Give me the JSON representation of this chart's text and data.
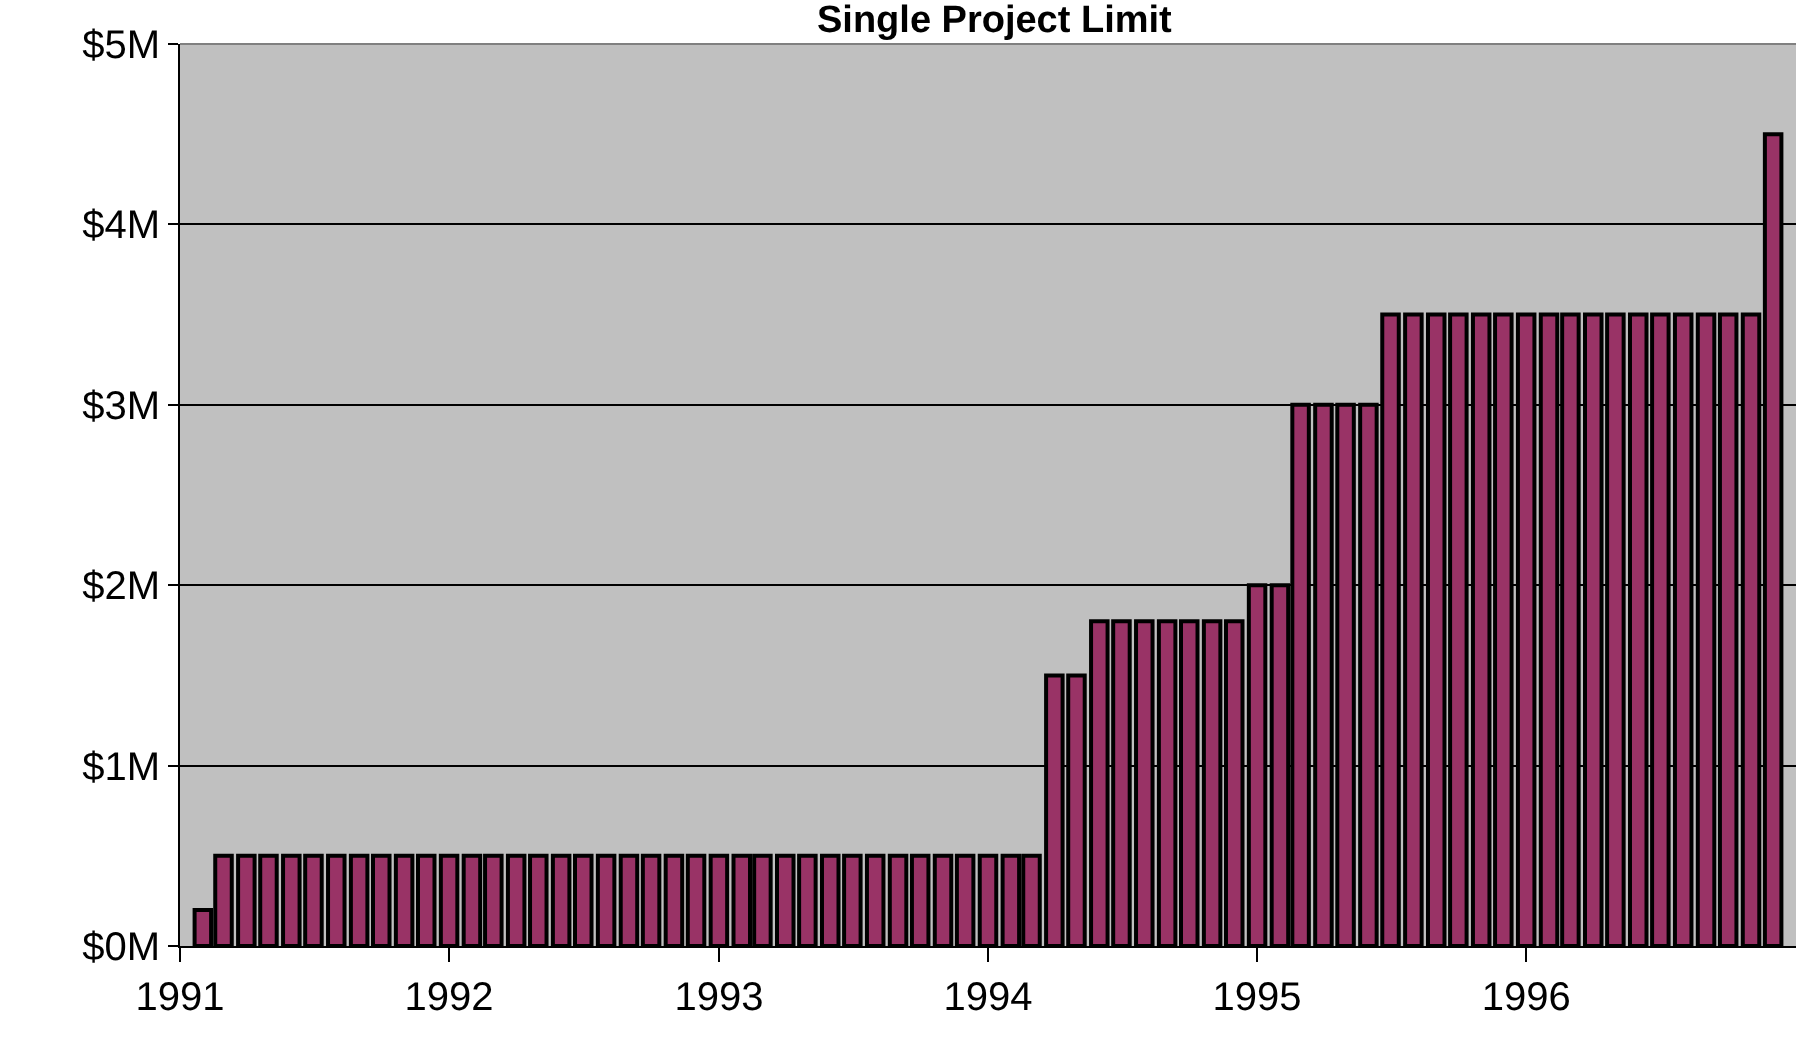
{
  "chart_data": {
    "type": "bar",
    "title": "Single Project Limit",
    "x": [
      "1991-02",
      "1991-03",
      "1991-04",
      "1991-05",
      "1991-06",
      "1991-07",
      "1991-08",
      "1991-09",
      "1991-10",
      "1991-11",
      "1991-12",
      "1992-01",
      "1992-02",
      "1992-03",
      "1992-04",
      "1992-05",
      "1992-06",
      "1992-07",
      "1992-08",
      "1992-09",
      "1992-10",
      "1992-11",
      "1992-12",
      "1993-01",
      "1993-02",
      "1993-03",
      "1993-04",
      "1993-05",
      "1993-06",
      "1993-07",
      "1993-08",
      "1993-09",
      "1993-10",
      "1993-11",
      "1993-12",
      "1994-01",
      "1994-02",
      "1994-03",
      "1994-04",
      "1994-05",
      "1994-06",
      "1994-07",
      "1994-08",
      "1994-09",
      "1994-10",
      "1994-11",
      "1994-12",
      "1995-01",
      "1995-02",
      "1995-03",
      "1995-04",
      "1995-05",
      "1995-06",
      "1995-07",
      "1995-08",
      "1995-09",
      "1995-10",
      "1995-11",
      "1995-12",
      "1996-01",
      "1996-02",
      "1996-03",
      "1996-04",
      "1996-05",
      "1996-06",
      "1996-07",
      "1996-08",
      "1996-09",
      "1996-10",
      "1996-11",
      "1996-12"
    ],
    "values": [
      0.2,
      0.5,
      0.5,
      0.5,
      0.5,
      0.5,
      0.5,
      0.5,
      0.5,
      0.5,
      0.5,
      0.5,
      0.5,
      0.5,
      0.5,
      0.5,
      0.5,
      0.5,
      0.5,
      0.5,
      0.5,
      0.5,
      0.5,
      0.5,
      0.5,
      0.5,
      0.5,
      0.5,
      0.5,
      0.5,
      0.5,
      0.5,
      0.5,
      0.5,
      0.5,
      0.5,
      0.5,
      0.5,
      1.5,
      1.5,
      1.8,
      1.8,
      1.8,
      1.8,
      1.8,
      1.8,
      1.8,
      2.0,
      2.0,
      3.0,
      3.0,
      3.0,
      3.0,
      3.5,
      3.5,
      3.5,
      3.5,
      3.5,
      3.5,
      3.5,
      3.5,
      3.5,
      3.5,
      3.5,
      3.5,
      3.5,
      3.5,
      3.5,
      3.5,
      3.5,
      4.5
    ],
    "color": "#993366",
    "xlim": [
      "1991-01",
      "1997-01"
    ],
    "xticks": [
      {
        "value": "1991",
        "label": "1991"
      },
      {
        "value": "1992",
        "label": "1992"
      },
      {
        "value": "1993",
        "label": "1993"
      },
      {
        "value": "1994",
        "label": "1994"
      },
      {
        "value": "1995",
        "label": "1995"
      },
      {
        "value": "1996",
        "label": "1996"
      }
    ],
    "ylim": [
      0,
      5
    ],
    "yticks": [
      {
        "value": 0,
        "label": "$0M"
      },
      {
        "value": 1,
        "label": "$1M"
      },
      {
        "value": 2,
        "label": "$2M"
      },
      {
        "value": 3,
        "label": "$3M"
      },
      {
        "value": 4,
        "label": "$4M"
      },
      {
        "value": 5,
        "label": "$5M"
      }
    ],
    "grid": "y"
  }
}
